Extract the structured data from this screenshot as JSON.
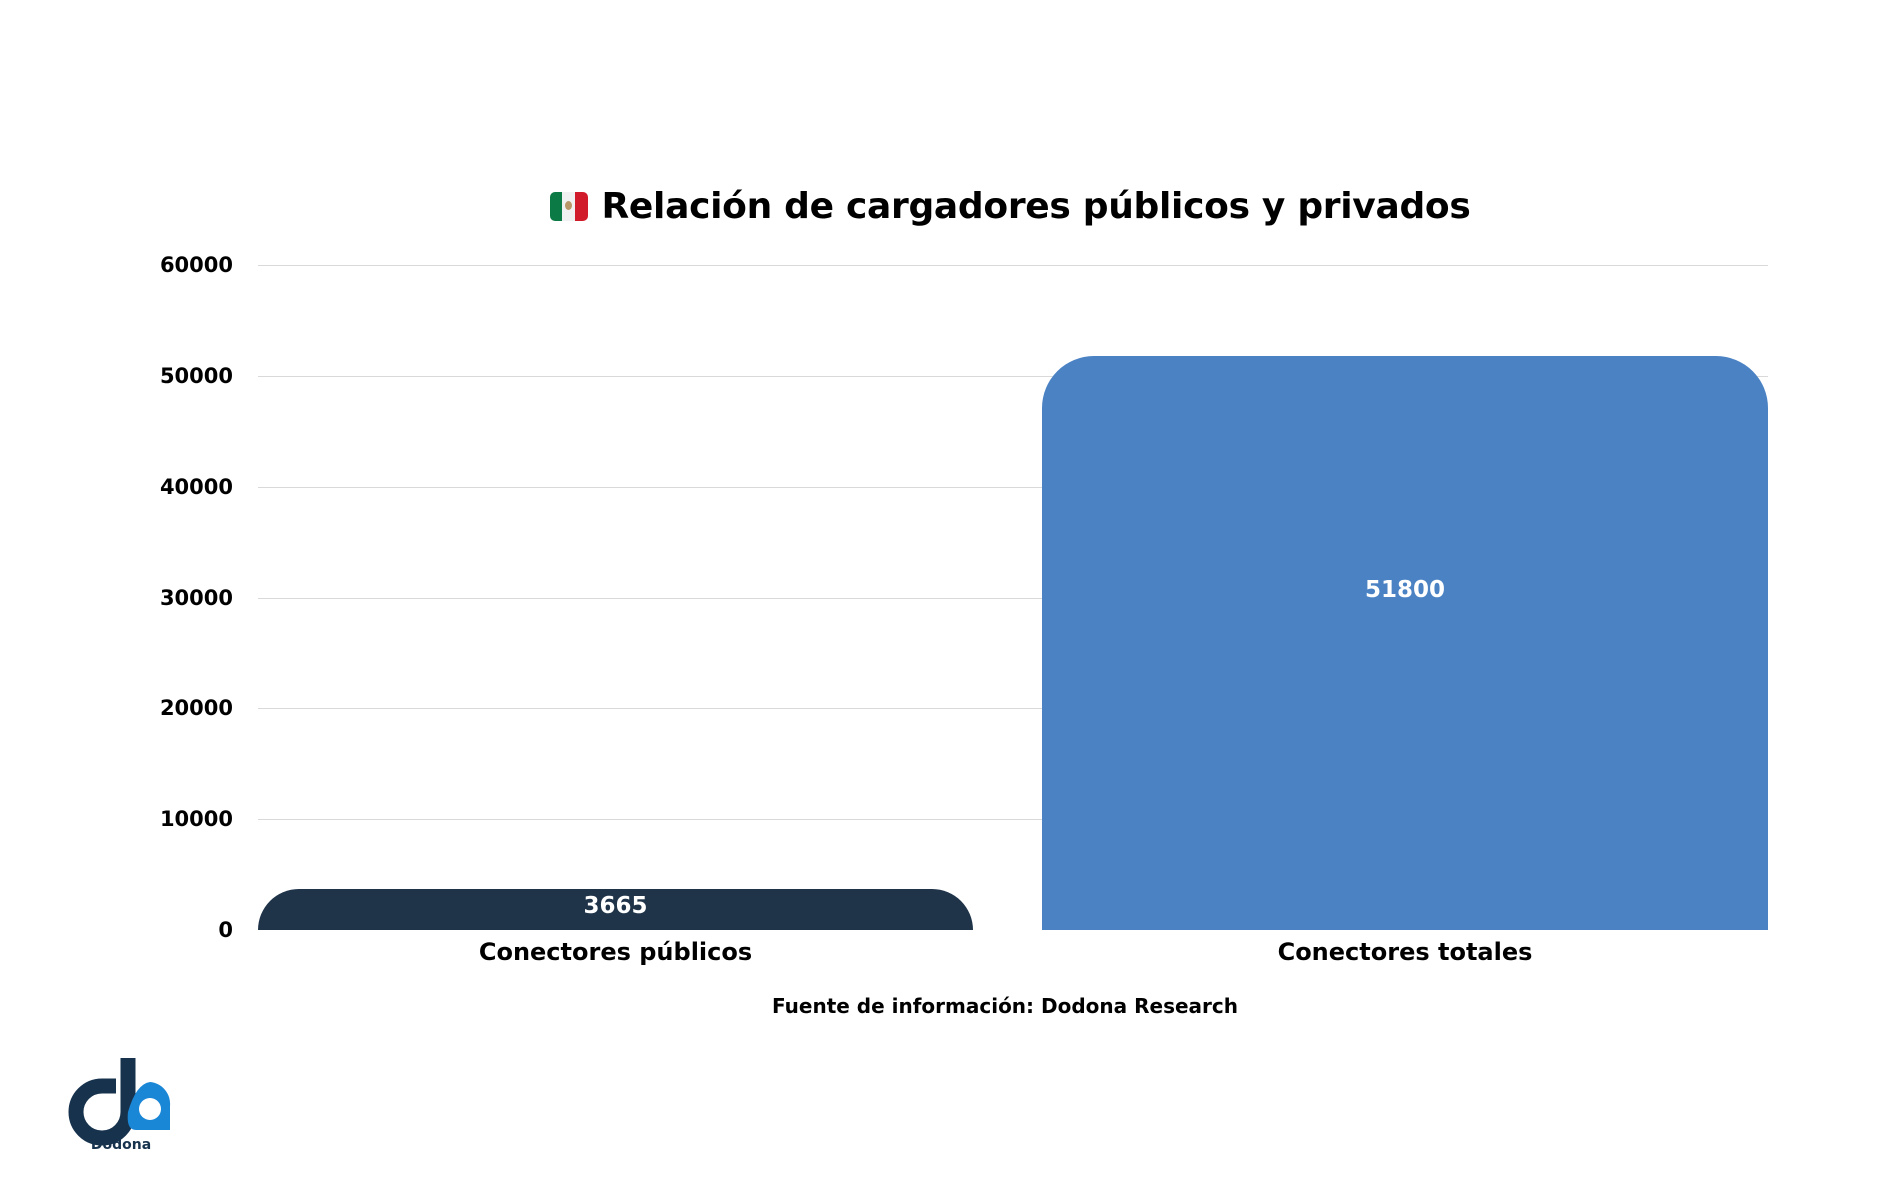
{
  "title": {
    "icon": "mexico-flag-icon",
    "text": "Relación de cargadores públicos y privados"
  },
  "source": "Fuente de información: Dodona Research",
  "logo": {
    "text": "Dodona",
    "colors": {
      "dark": "#17324d",
      "light": "#1a86d6"
    }
  },
  "chart_data": {
    "type": "bar",
    "title": "Relación de cargadores públicos y privados",
    "categories": [
      "Conectores públicos",
      "Conectores totales"
    ],
    "values": [
      3665,
      51800
    ],
    "value_labels": [
      "3665",
      "51800"
    ],
    "colors": [
      "#1f3349",
      "#4a82c4"
    ],
    "xlabel": "",
    "ylabel": "",
    "ylim": [
      0,
      60000
    ],
    "yticks": [
      0,
      10000,
      20000,
      30000,
      40000,
      50000,
      60000
    ],
    "ytick_labels": [
      "0",
      "10000",
      "20000",
      "30000",
      "40000",
      "50000",
      "60000"
    ],
    "grid": true,
    "legend": "none",
    "annotation": "Fuente de información: Dodona Research"
  }
}
